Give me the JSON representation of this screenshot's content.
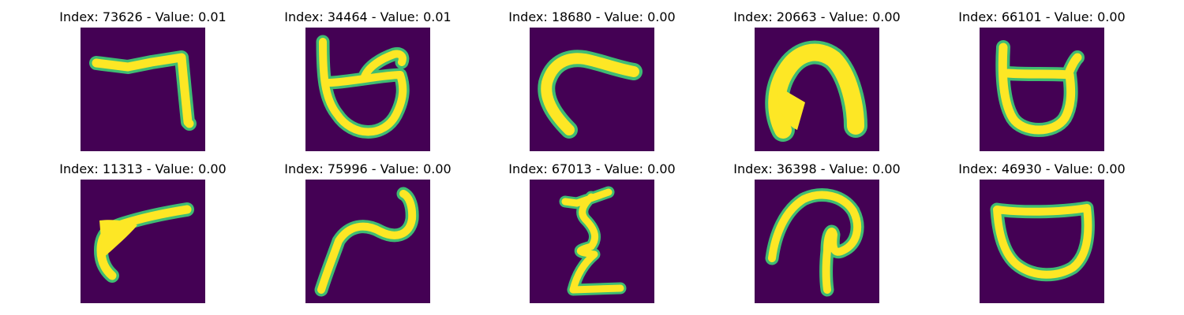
{
  "colors": {
    "background": "#440154",
    "stroke": "#fde725",
    "edge": "#3fbc73",
    "edge_dark": "#21918c"
  },
  "panels": [
    {
      "title": "Index: 73626 - Value: 0.01",
      "glyph": "bent-stroke"
    },
    {
      "title": "Index: 34464 - Value: 0.01",
      "glyph": "looped-cup"
    },
    {
      "title": "Index: 18680 - Value: 0.00",
      "glyph": "hook-curve"
    },
    {
      "title": "Index: 20663 - Value: 0.00",
      "glyph": "arch"
    },
    {
      "title": "Index: 66101 - Value: 0.00",
      "glyph": "cup-with-bar"
    },
    {
      "title": "Index: 11313 - Value: 0.00",
      "glyph": "slanted-hook"
    },
    {
      "title": "Index: 75996 - Value: 0.00",
      "glyph": "wave"
    },
    {
      "title": "Index: 67013 - Value: 0.00",
      "glyph": "zigzag"
    },
    {
      "title": "Index: 36398 - Value: 0.00",
      "glyph": "loop-stem"
    },
    {
      "title": "Index: 46930 - Value: 0.00",
      "glyph": "open-cup"
    }
  ]
}
